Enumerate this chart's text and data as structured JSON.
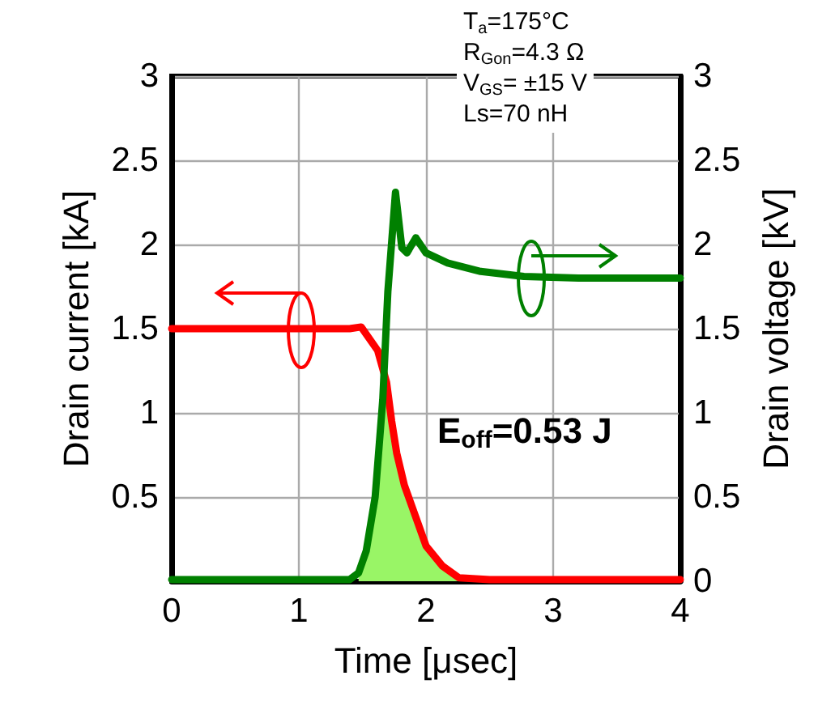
{
  "chart_data": {
    "type": "line",
    "xlabel": "Time [μsec]",
    "ylabel": "Drain current [kA]",
    "y2label": "Drain voltage [kV]",
    "xlim": [
      0,
      4
    ],
    "xticks": [
      0,
      1,
      2,
      3,
      4
    ],
    "ylim": [
      0,
      3
    ],
    "yticks": [
      {
        "value": 0,
        "label": null
      },
      0.5,
      1,
      1.5,
      2,
      2.5,
      3
    ],
    "y2lim": [
      0,
      3
    ],
    "y2ticks": [
      0,
      0.5,
      1,
      1.5,
      2,
      2.5,
      3
    ],
    "grid": true,
    "line_style": "solid",
    "marker": "none",
    "annotations": [
      "T$_{a}$=175°C",
      "R$_{Gon}$=4.3 Ω",
      "V$_{GS}$= ±15 V",
      "Ls=70 nH",
      "E$_{off}$=0.53 J"
    ],
    "series": [
      {
        "type": "area",
        "color": "#99f566",
        "x": [
          1.47,
          1.53,
          1.6,
          1.66,
          1.69,
          1.73,
          1.77,
          1.83,
          1.92,
          2.0,
          2.13,
          2.26
        ],
        "values": [
          0.05,
          0.18,
          0.5,
          1.08,
          1.18,
          0.95,
          0.76,
          0.57,
          0.38,
          0.21,
          0.09,
          0.02
        ]
      },
      {
        "color": "#ff0000",
        "x": [
          0,
          0.5,
          1.0,
          1.4,
          1.49,
          1.62,
          1.69,
          1.73,
          1.77,
          1.83,
          1.92,
          2.0,
          2.13,
          2.26,
          2.5,
          3,
          3.5,
          4
        ],
        "values": [
          1.5,
          1.5,
          1.5,
          1.5,
          1.51,
          1.37,
          1.18,
          0.95,
          0.76,
          0.57,
          0.38,
          0.21,
          0.09,
          0.02,
          0.01,
          0.01,
          0.01,
          0.01
        ]
      },
      {
        "color": "#008000",
        "axis": "y2",
        "x": [
          0,
          0.5,
          1.0,
          1.4,
          1.47,
          1.53,
          1.6,
          1.66,
          1.7,
          1.76,
          1.81,
          1.85,
          1.92,
          2.0,
          2.17,
          2.43,
          2.77,
          3.2,
          3.6,
          4
        ],
        "values": [
          0.01,
          0.01,
          0.01,
          0.01,
          0.05,
          0.18,
          0.5,
          1.08,
          1.72,
          2.31,
          1.98,
          1.95,
          2.04,
          1.95,
          1.89,
          1.84,
          1.81,
          1.8,
          1.8,
          1.8
        ]
      }
    ]
  }
}
